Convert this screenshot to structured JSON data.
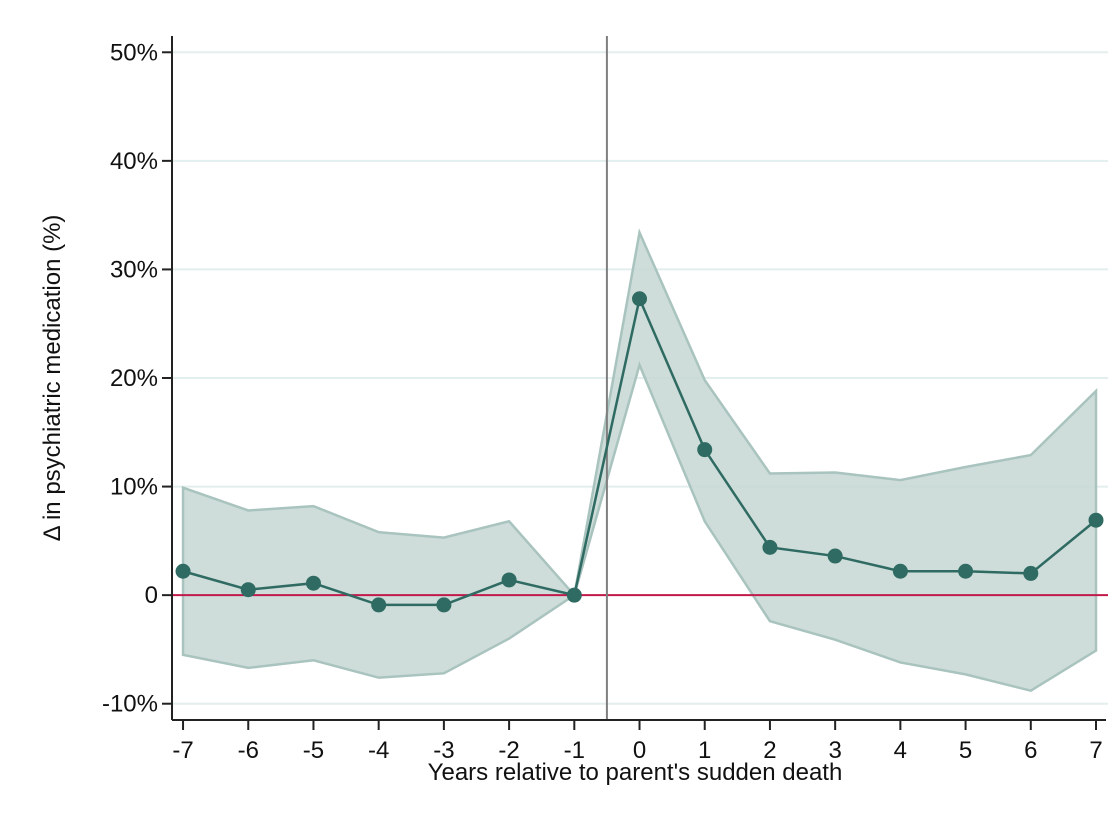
{
  "chart_data": {
    "type": "line",
    "title": "",
    "xlabel": "Years relative to parent's sudden death",
    "ylabel": "Δ in psychiatric medication (%)",
    "x": [
      -7,
      -6,
      -5,
      -4,
      -3,
      -2,
      -1,
      0,
      1,
      2,
      3,
      4,
      5,
      6,
      7
    ],
    "x_ticks": [
      -7,
      -6,
      -5,
      -4,
      -3,
      -2,
      -1,
      0,
      1,
      2,
      3,
      4,
      5,
      6,
      7
    ],
    "x_tick_labels": [
      "-7",
      "-6",
      "-5",
      "-4",
      "-3",
      "-2",
      "-1",
      "0",
      "1",
      "2",
      "3",
      "4",
      "5",
      "6",
      "7"
    ],
    "y_ticks": [
      -10,
      0,
      10,
      20,
      30,
      40,
      50
    ],
    "y_tick_labels": [
      "-10%",
      "0",
      "10%",
      "20%",
      "30%",
      "40%",
      "50%"
    ],
    "xlim": [
      -7.2,
      7.0
    ],
    "ylim": [
      -11.5,
      51.5
    ],
    "grid": "horizontal",
    "legend": "none",
    "series": [
      {
        "values": [
          2.2,
          0.5,
          1.1,
          -0.9,
          -0.9,
          1.4,
          0.0,
          27.3,
          13.4,
          4.4,
          3.6,
          2.2,
          2.2,
          2.0,
          6.9
        ],
        "ci_upper": [
          9.9,
          7.8,
          8.2,
          5.8,
          5.3,
          6.8,
          0.0,
          33.4,
          19.8,
          11.2,
          11.3,
          10.6,
          11.8,
          12.9,
          18.8
        ],
        "ci_lower": [
          -5.5,
          -6.7,
          -6.0,
          -7.6,
          -7.2,
          -4.0,
          0.0,
          21.2,
          6.8,
          -2.4,
          -4.1,
          -6.2,
          -7.3,
          -8.8,
          -5.1
        ]
      }
    ],
    "reference_lines": {
      "vertical_x": -0.5,
      "horizontal_y": 0
    },
    "colors": {
      "series": "#2f6b62",
      "ci_band": "#c6d7d4",
      "ci_border": "#a9c3be",
      "zero_line": "#c0194a",
      "vertical_line": "#7f7f7f",
      "grid": "#e3eeee",
      "axis": "#222222"
    }
  }
}
